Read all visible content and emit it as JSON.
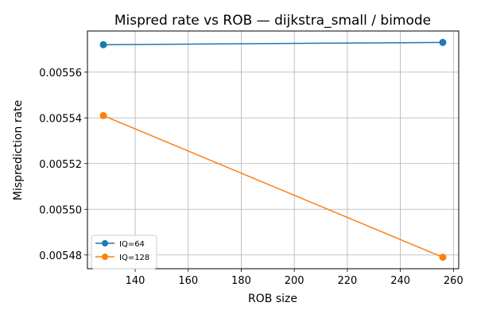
{
  "chart_data": {
    "type": "line",
    "title": "Mispred rate vs ROB — dijkstra_small / bimode",
    "xlabel": "ROB size",
    "ylabel": "Misprediction rate",
    "xlim": [
      122,
      262
    ],
    "ylim": [
      0.005474,
      0.005578
    ],
    "xticks": [
      140,
      160,
      180,
      200,
      220,
      240,
      260
    ],
    "xtick_labels": [
      "140",
      "160",
      "180",
      "200",
      "220",
      "240",
      "260"
    ],
    "yticks": [
      0.00548,
      0.0055,
      0.00552,
      0.00554,
      0.00556
    ],
    "ytick_labels": [
      "0.00548",
      "0.00550",
      "0.00552",
      "0.00554",
      "0.00556"
    ],
    "grid": true,
    "legend_position": "lower-left",
    "series": [
      {
        "name": "IQ=64",
        "color": "#1f77b4",
        "x": [
          128,
          256
        ],
        "y": [
          0.005572,
          0.005573
        ]
      },
      {
        "name": "IQ=128",
        "color": "#ff7f0e",
        "x": [
          128,
          256
        ],
        "y": [
          0.005541,
          0.005479
        ]
      }
    ]
  }
}
